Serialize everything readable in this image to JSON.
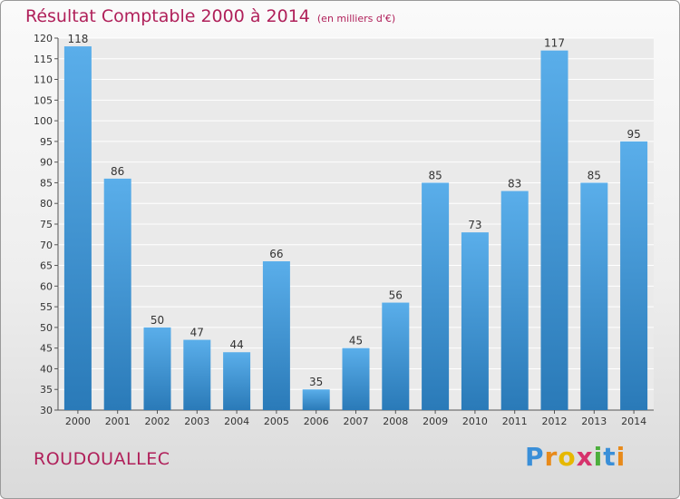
{
  "header": {
    "title": "Résultat Comptable 2000 à 2014",
    "subtitle": "(en milliers d'€)"
  },
  "footer": {
    "location": "ROUDOUALLEC",
    "logo_text": "Proxiti"
  },
  "colors": {
    "title": "#b0205a",
    "bar_top": "#5aaeea",
    "bar_bottom": "#2a7ab8",
    "plot_bg": "#eaeaea"
  },
  "chart_data": {
    "type": "bar",
    "title": "Résultat Comptable 2000 à 2014",
    "xlabel": "",
    "ylabel": "",
    "categories": [
      "2000",
      "2001",
      "2002",
      "2003",
      "2004",
      "2005",
      "2006",
      "2007",
      "2008",
      "2009",
      "2010",
      "2011",
      "2012",
      "2013",
      "2014"
    ],
    "values": [
      118,
      86,
      50,
      47,
      44,
      66,
      35,
      45,
      56,
      85,
      73,
      83,
      117,
      85,
      95
    ],
    "ylim": [
      30,
      120
    ],
    "yticks": [
      30,
      35,
      40,
      45,
      50,
      55,
      60,
      65,
      70,
      75,
      80,
      85,
      90,
      95,
      100,
      105,
      110,
      115,
      120
    ],
    "grid": true,
    "legend": "none",
    "data_labels": true
  }
}
